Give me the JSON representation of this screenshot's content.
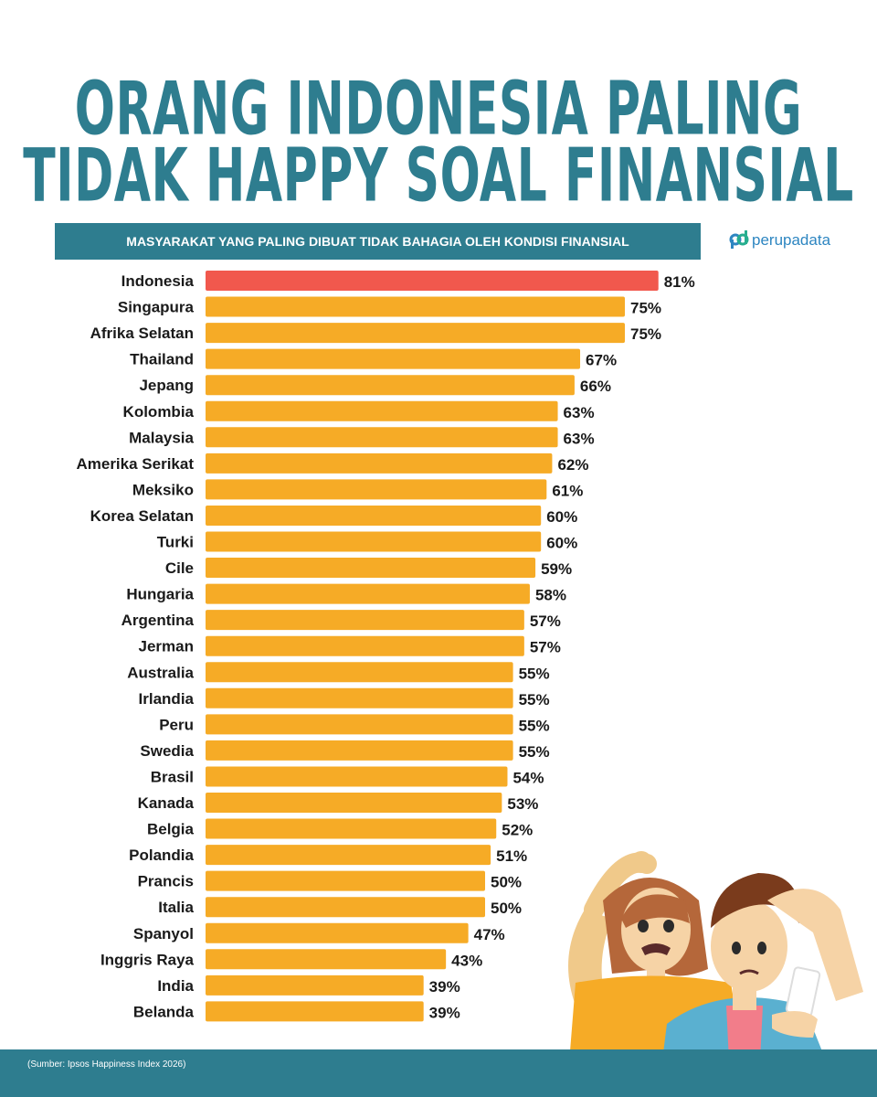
{
  "header": {
    "title_line1": "ORANG INDONESIA PALING",
    "title_line2": "TIDAK HAPPY SOAL FINANSIAL",
    "subtitle": "MASYARAKAT YANG PALING DIBUAT TIDAK BAHAGIA OLEH KONDISI FINANSIAL"
  },
  "logo": {
    "text": "perupadata",
    "mark": "pd"
  },
  "footer": {
    "source": "(Sumber: Ipsos Happiness Index 2026)"
  },
  "colors": {
    "highlight": "#f1584d",
    "bar": "#f6ab26",
    "brand": "#2e7d8f"
  },
  "chart_data": {
    "type": "bar",
    "orientation": "horizontal",
    "value_suffix": "%",
    "highlight_category": "Indonesia",
    "categories": [
      "Indonesia",
      "Singapura",
      "Afrika Selatan",
      "Thailand",
      "Jepang",
      "Kolombia",
      "Malaysia",
      "Amerika Serikat",
      "Meksiko",
      "Korea Selatan",
      "Turki",
      "Cile",
      "Hungaria",
      "Argentina",
      "Jerman",
      "Australia",
      "Irlandia",
      "Peru",
      "Swedia",
      "Brasil",
      "Kanada",
      "Belgia",
      "Polandia",
      "Prancis",
      "Italia",
      "Spanyol",
      "Inggris Raya",
      "India",
      "Belanda"
    ],
    "values": [
      81,
      75,
      75,
      67,
      66,
      63,
      63,
      62,
      61,
      60,
      60,
      59,
      58,
      57,
      57,
      55,
      55,
      55,
      55,
      54,
      53,
      52,
      51,
      50,
      50,
      47,
      43,
      39,
      39
    ]
  },
  "illustration": {
    "description_icons": [
      "worried-woman-icon",
      "worried-man-with-phone-icon"
    ]
  }
}
